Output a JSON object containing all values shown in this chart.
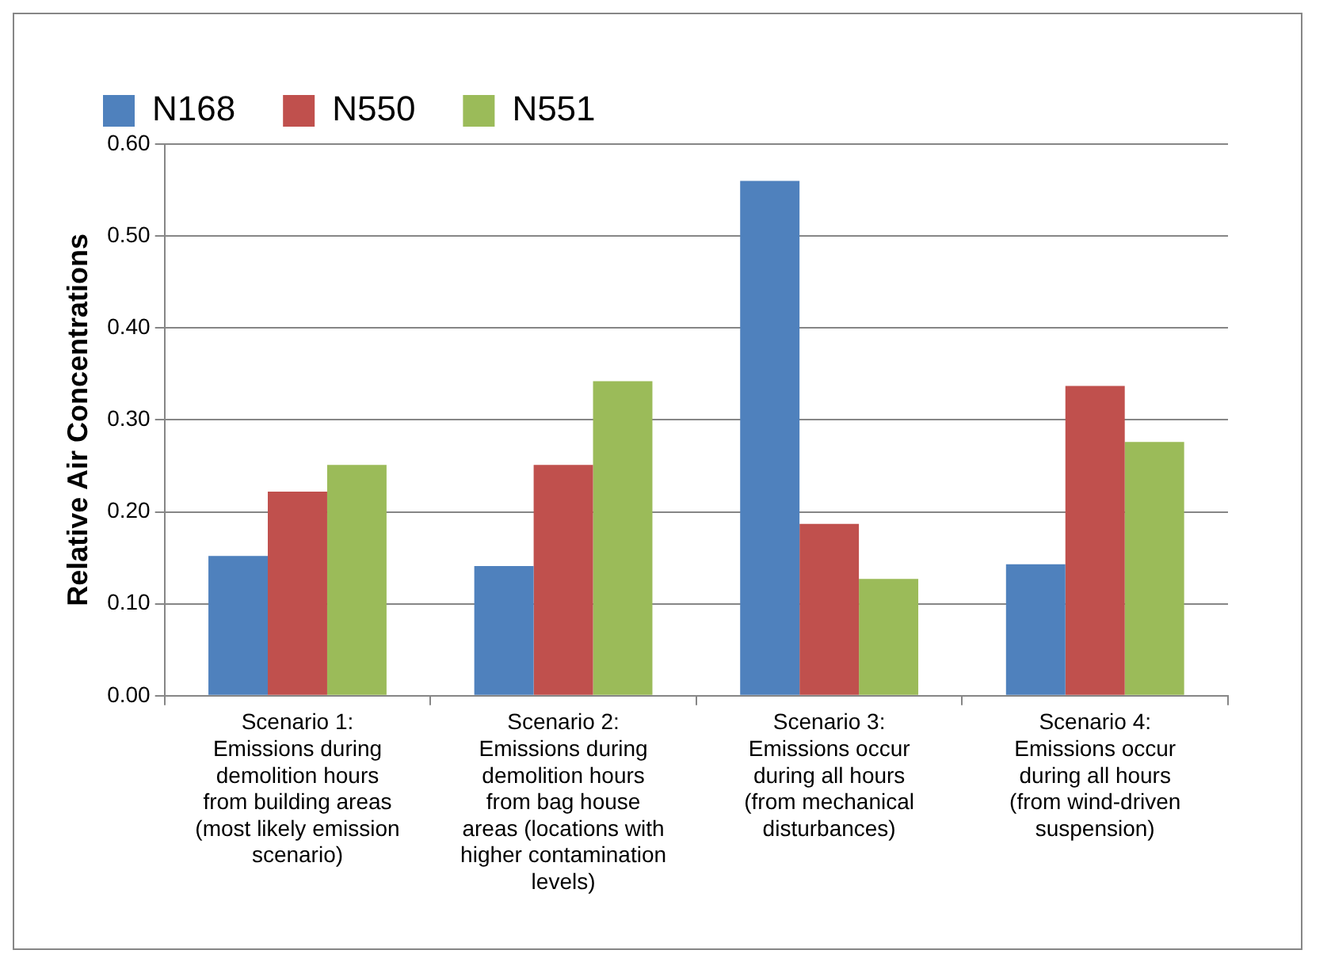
{
  "chart_data": {
    "type": "bar",
    "ylabel": "Relative Air Concentrations",
    "categories": [
      "Scenario 1: Emissions during demolition hours from building areas (most likely emission scenario)",
      "Scenario 2: Emissions during demolition hours from bag house areas (locations with higher contamination levels)",
      "Scenario 3: Emissions occur during all hours (from mechanical disturbances)",
      "Scenario 4: Emissions occur during all hours (from wind-driven suspension)"
    ],
    "series": [
      {
        "name": "N168",
        "color": "#4f81bd",
        "values": [
          0.152,
          0.141,
          0.56,
          0.143
        ]
      },
      {
        "name": "N550",
        "color": "#c0504d",
        "values": [
          0.222,
          0.251,
          0.187,
          0.337
        ]
      },
      {
        "name": "N551",
        "color": "#9bbb59",
        "values": [
          0.251,
          0.342,
          0.127,
          0.276
        ]
      }
    ],
    "ylim": [
      0,
      0.6
    ],
    "yticks": [
      {
        "value": 0,
        "label": "0.00"
      },
      {
        "value": 0.1,
        "label": "0.10"
      },
      {
        "value": 0.2,
        "label": "0.20"
      },
      {
        "value": 0.3,
        "label": "0.30"
      },
      {
        "value": 0.4,
        "label": "0.40"
      },
      {
        "value": 0.5,
        "label": "0.50"
      },
      {
        "value": 0.6,
        "label": "0.60"
      }
    ],
    "grid": "y",
    "legend": "top"
  }
}
